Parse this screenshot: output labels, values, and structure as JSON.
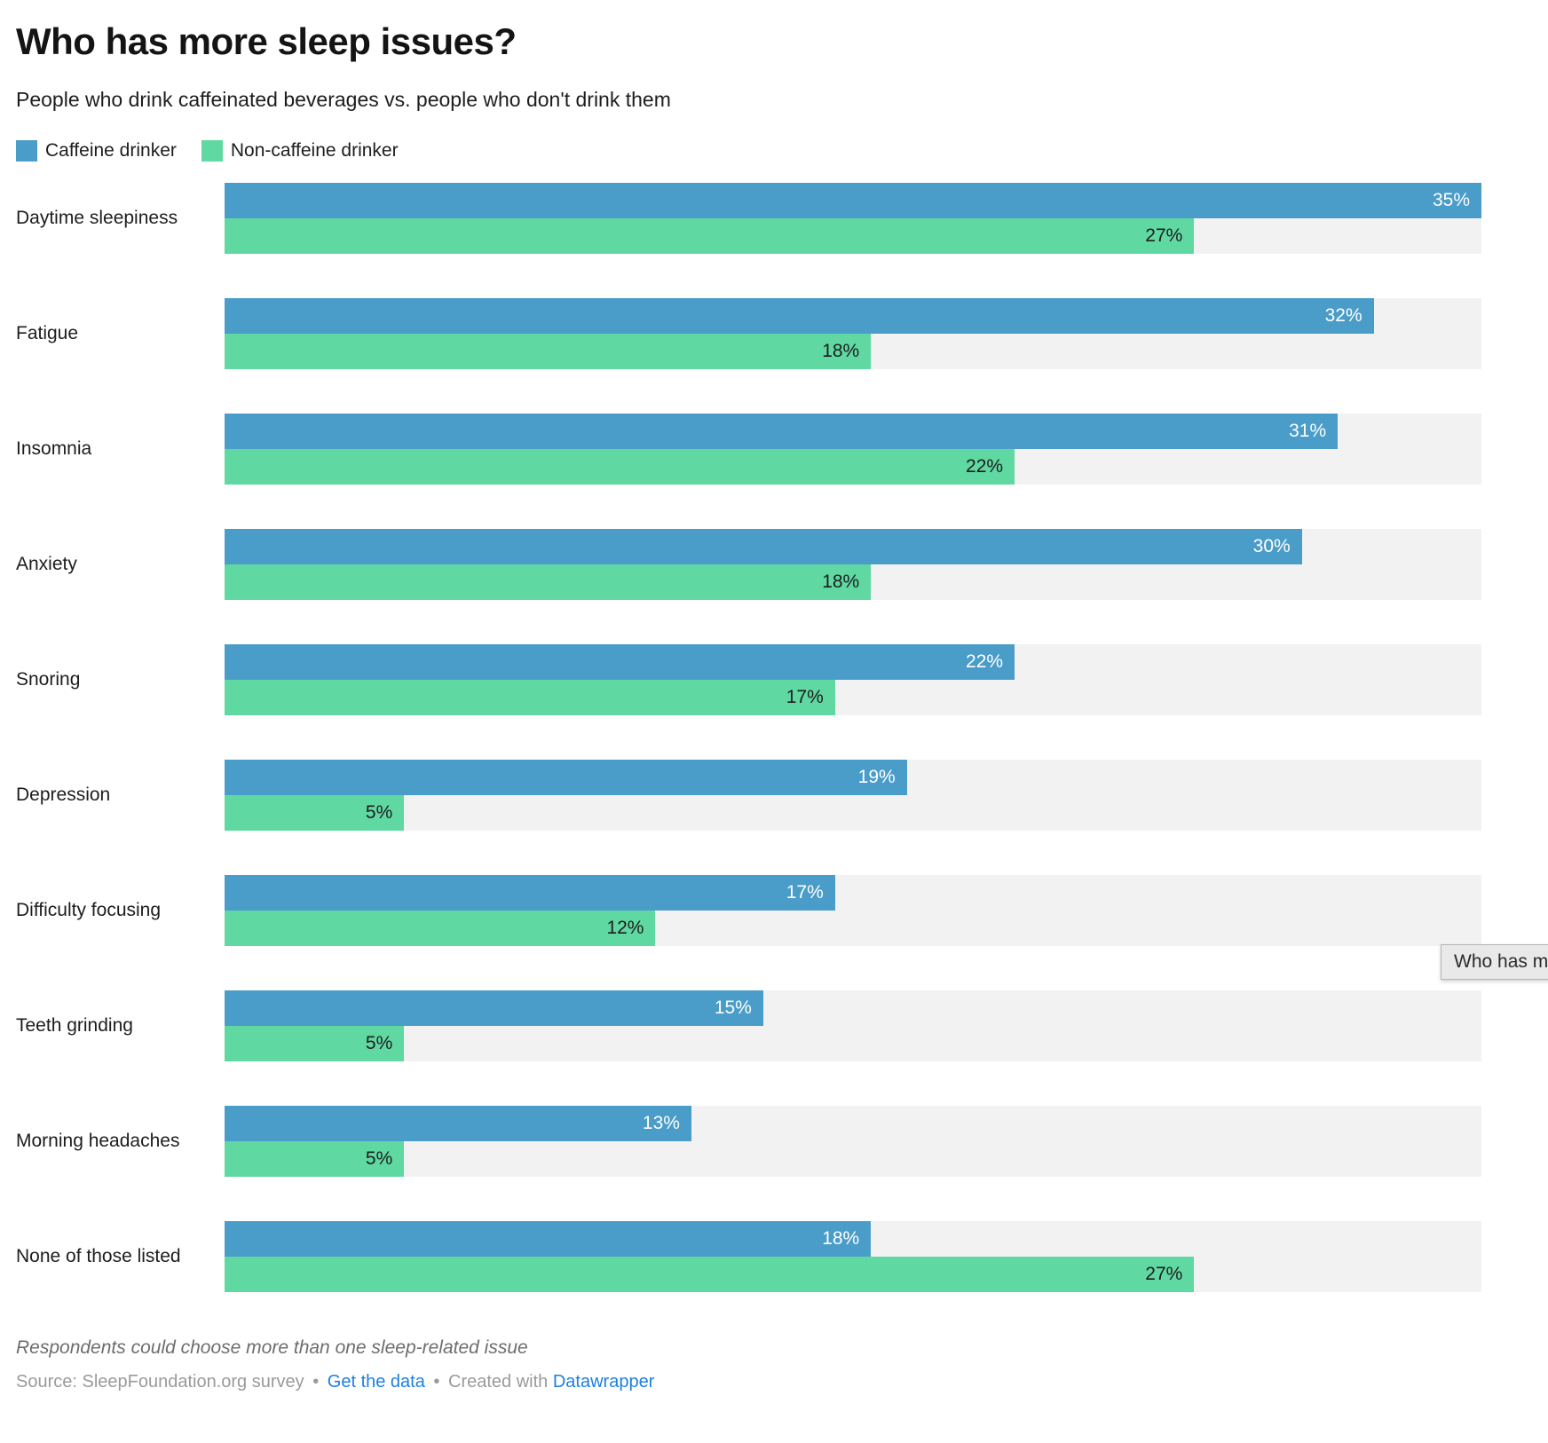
{
  "header": {
    "title": "Who has more sleep issues?",
    "subtitle": "People who drink caffeinated beverages vs. people who don't drink them"
  },
  "legend": {
    "items": [
      {
        "label": "Caffeine drinker",
        "color": "#4a9cc9"
      },
      {
        "label": "Non-caffeine drinker",
        "color": "#5fd8a2"
      }
    ]
  },
  "chart_data": {
    "type": "bar",
    "orientation": "horizontal",
    "title": "Who has more sleep issues?",
    "subtitle": "People who drink caffeinated beverages vs. people who don't drink them",
    "categories": [
      "Daytime sleepiness",
      "Fatigue",
      "Insomnia",
      "Anxiety",
      "Snoring",
      "Depression",
      "Difficulty focusing",
      "Teeth grinding",
      "Morning headaches",
      "None of those listed"
    ],
    "series": [
      {
        "name": "Caffeine drinker",
        "color": "#4a9cc9",
        "label_color": "#ffffff",
        "values": [
          35,
          32,
          31,
          30,
          22,
          19,
          17,
          15,
          13,
          18
        ]
      },
      {
        "name": "Non-caffeine drinker",
        "color": "#5fd8a2",
        "label_color": "#1d1d1d",
        "values": [
          27,
          18,
          22,
          18,
          17,
          5,
          12,
          5,
          5,
          27
        ]
      }
    ],
    "value_suffix": "%",
    "xlim": [
      0,
      35
    ],
    "grid": false,
    "legend_position": "top-left",
    "track_color": "#f2f2f2",
    "value_labels": "inside-end"
  },
  "tooltip": {
    "text": "Who has m"
  },
  "footer": {
    "note": "Respondents could choose more than one sleep-related issue",
    "source_label": "Source: SleepFoundation.org survey",
    "separator": "•",
    "get_data_link": "Get the data",
    "created_with": "Created with",
    "datawrapper_link": "Datawrapper"
  }
}
